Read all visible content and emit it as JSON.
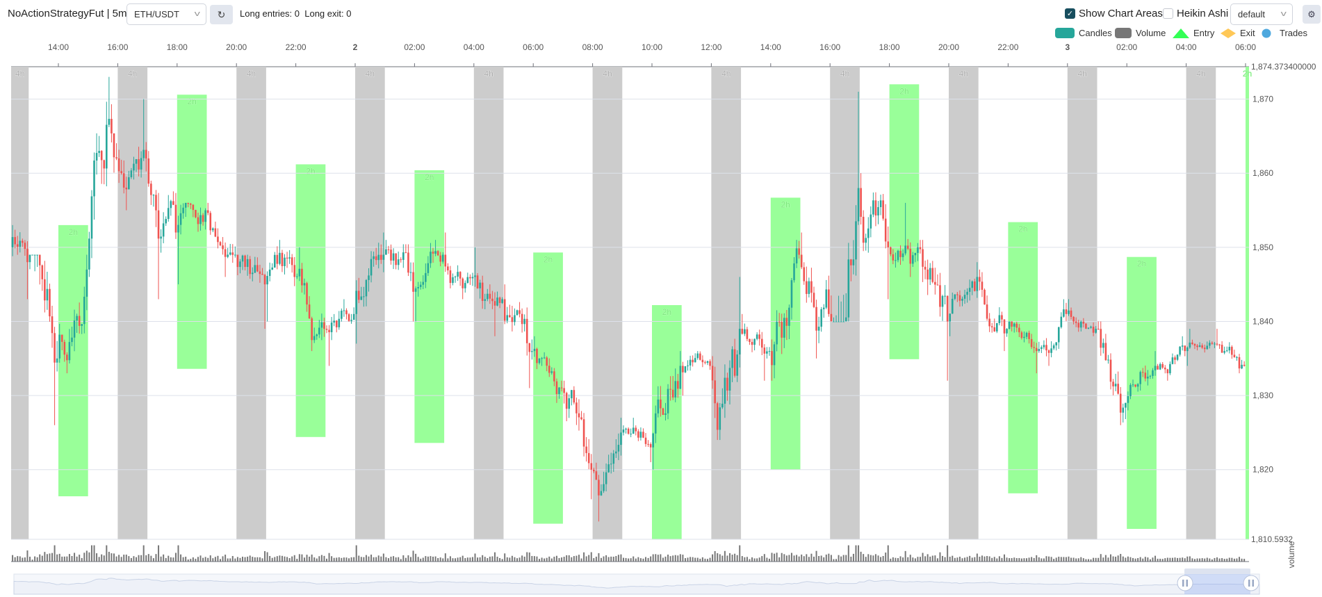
{
  "header": {
    "title": "NoActionStrategyFut | 5m",
    "pair": "ETH/USDT",
    "refresh_icon": "refresh-icon",
    "entries_text": "Long entries: 0  Long exit: 0",
    "show_chart_areas": {
      "label": "Show Chart Areas",
      "checked": true
    },
    "heikin_ashi": {
      "label": "Heikin Ashi",
      "checked": false
    },
    "layout": "default",
    "settings_icon": "gear-icon"
  },
  "legend": [
    {
      "label": "Candles",
      "color": "#26a69a",
      "shape": "rect"
    },
    {
      "label": "Volume",
      "color": "#777777",
      "shape": "rect"
    },
    {
      "label": "Entry",
      "color": "#33ff55",
      "shape": "triangle"
    },
    {
      "label": "Exit",
      "color": "#ffc857",
      "shape": "diamond"
    },
    {
      "label": "Trades",
      "color": "#4ea8de",
      "shape": "circle"
    }
  ],
  "chart_data": {
    "type": "candlestick",
    "interval": "5m",
    "x_tick_labels": [
      "14:00",
      "16:00",
      "18:00",
      "20:00",
      "22:00",
      "2",
      "02:00",
      "04:00",
      "06:00",
      "08:00",
      "10:00",
      "12:00",
      "14:00",
      "16:00",
      "18:00",
      "20:00",
      "22:00",
      "3",
      "02:00",
      "04:00",
      "06:00"
    ],
    "y_tick_labels": [
      "1,870",
      "1,860",
      "1,850",
      "1,840",
      "1,830",
      "1,820"
    ],
    "y_ticks": [
      1870,
      1860,
      1850,
      1840,
      1830,
      1820
    ],
    "ylim": [
      1810.5932,
      1874.3734
    ],
    "y_max_label": "1,874.373400000",
    "y_min_label": "1,810.5932",
    "volume_label": "volume",
    "grid": true,
    "colors": {
      "up": "#26a69a",
      "down": "#ef5350",
      "area_4h": "#cccccc",
      "area_2h": "#99ff99",
      "volume": "#777777"
    },
    "hourly_ohlc_note_times": "start 12:25 day 1, hourly buckets",
    "hourly_ohlc": [
      [
        1850,
        1853,
        1843,
        1848
      ],
      [
        1848,
        1849,
        1826,
        1835
      ],
      [
        1835,
        1849,
        1833,
        1847
      ],
      [
        1847,
        1873,
        1846,
        1862
      ],
      [
        1862,
        1870,
        1855,
        1862
      ],
      [
        1862,
        1863,
        1843,
        1852
      ],
      [
        1852,
        1856,
        1845,
        1855
      ],
      [
        1855,
        1856,
        1846,
        1849
      ],
      [
        1849,
        1849,
        1839,
        1845
      ],
      [
        1845,
        1851,
        1840,
        1846
      ],
      [
        1846,
        1850,
        1836,
        1839
      ],
      [
        1839,
        1843,
        1834,
        1841
      ],
      [
        1841,
        1852,
        1837,
        1849
      ],
      [
        1849,
        1851,
        1840,
        1844
      ],
      [
        1844,
        1851,
        1840,
        1849
      ],
      [
        1849,
        1852,
        1843,
        1846
      ],
      [
        1846,
        1850,
        1838,
        1843
      ],
      [
        1843,
        1845,
        1831,
        1836
      ],
      [
        1836,
        1838,
        1829,
        1831
      ],
      [
        1831,
        1832,
        1816,
        1820
      ],
      [
        1820,
        1827,
        1813,
        1825
      ],
      [
        1825,
        1827,
        1821,
        1823
      ],
      [
        1823,
        1836,
        1820,
        1834
      ],
      [
        1834,
        1836,
        1830,
        1834
      ],
      [
        1834,
        1846,
        1824,
        1839
      ],
      [
        1839,
        1841,
        1832,
        1836
      ],
      [
        1836,
        1851,
        1832,
        1849
      ],
      [
        1849,
        1852,
        1835,
        1841
      ],
      [
        1841,
        1871,
        1840,
        1858
      ],
      [
        1858,
        1860,
        1843,
        1850
      ],
      [
        1850,
        1856,
        1846,
        1850
      ],
      [
        1850,
        1851,
        1832,
        1840
      ],
      [
        1840,
        1848,
        1838,
        1846
      ],
      [
        1846,
        1847,
        1836,
        1839
      ],
      [
        1839,
        1840,
        1833,
        1836
      ],
      [
        1836,
        1843,
        1834,
        1841
      ],
      [
        1841,
        1843,
        1838,
        1839
      ],
      [
        1839,
        1840,
        1826,
        1829
      ],
      [
        1829,
        1836,
        1828,
        1834
      ],
      [
        1834,
        1838,
        1832,
        1836
      ],
      [
        1836,
        1839,
        1834,
        1837
      ],
      [
        1837,
        1839,
        1833,
        1834
      ]
    ],
    "areas_4h": {
      "label": "4h"
    },
    "areas_2h": {
      "label": "2h",
      "ranges": [
        [
          1853.0,
          1816.4
        ],
        [
          1870.6,
          1833.6
        ],
        [
          1861.2,
          1824.4
        ],
        [
          1860.4,
          1823.6
        ],
        [
          1849.3,
          1812.7
        ],
        [
          1842.2,
          1810.6
        ],
        [
          1856.7,
          1820.0
        ],
        [
          1872.0,
          1834.9
        ],
        [
          1853.4,
          1816.8
        ],
        [
          1848.7,
          1812.0
        ],
        [
          1874.37,
          1810.59
        ]
      ]
    }
  }
}
